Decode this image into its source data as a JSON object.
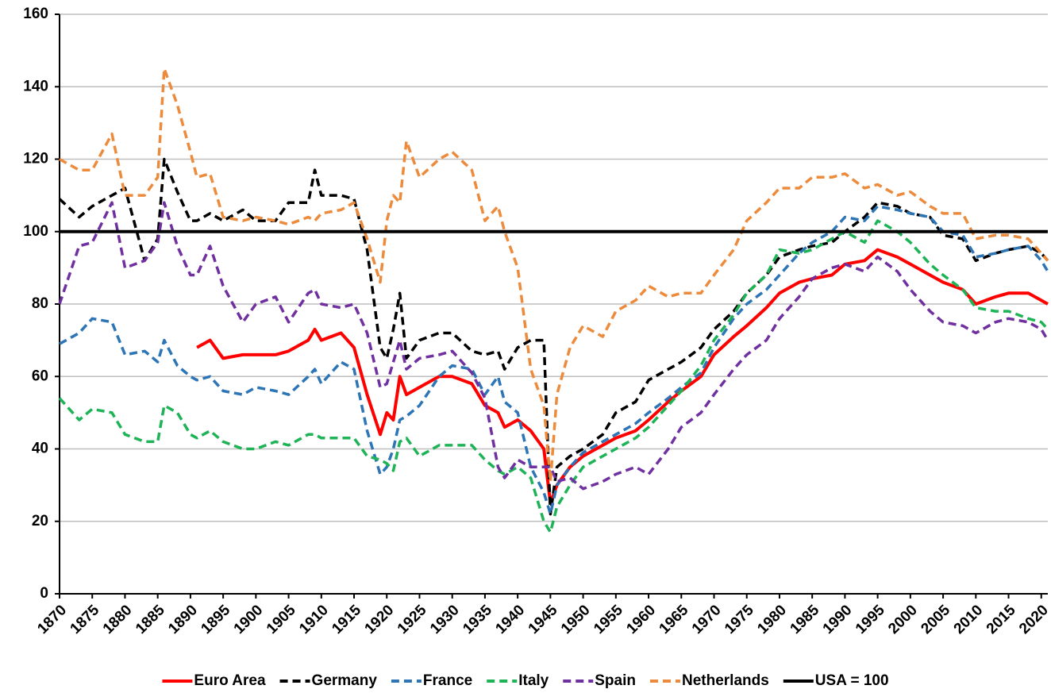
{
  "chart_data": {
    "type": "line",
    "x": [
      1870,
      1873,
      1875,
      1878,
      1880,
      1883,
      1885,
      1886,
      1888,
      1890,
      1891,
      1893,
      1895,
      1898,
      1900,
      1903,
      1905,
      1908,
      1909,
      1910,
      1913,
      1915,
      1917,
      1919,
      1920,
      1921,
      1922,
      1923,
      1925,
      1928,
      1930,
      1933,
      1935,
      1937,
      1938,
      1940,
      1942,
      1944,
      1945,
      1946,
      1948,
      1950,
      1953,
      1955,
      1958,
      1960,
      1963,
      1965,
      1968,
      1970,
      1973,
      1975,
      1978,
      1980,
      1983,
      1985,
      1988,
      1990,
      1993,
      1995,
      1998,
      2000,
      2003,
      2005,
      2008,
      2010,
      2013,
      2015,
      2018,
      2020,
      2021
    ],
    "series": [
      {
        "name": "Euro Area",
        "color": "#ff0000",
        "dash": false,
        "values": [
          null,
          null,
          null,
          null,
          null,
          null,
          null,
          null,
          null,
          null,
          68,
          70,
          65,
          66,
          66,
          66,
          67,
          70,
          73,
          70,
          72,
          68,
          55,
          44,
          50,
          48,
          60,
          55,
          57,
          60,
          60,
          58,
          52,
          50,
          46,
          48,
          45,
          40,
          25,
          30,
          35,
          38,
          41,
          43,
          45,
          48,
          53,
          56,
          60,
          66,
          71,
          74,
          79,
          83,
          86,
          87,
          88,
          91,
          92,
          95,
          93,
          91,
          88,
          86,
          84,
          80,
          82,
          83,
          83,
          81,
          80
        ]
      },
      {
        "name": "Germany",
        "color": "#000000",
        "dash": true,
        "values": [
          109,
          104,
          107,
          110,
          112,
          92,
          98,
          120,
          111,
          103,
          103,
          105,
          103,
          106,
          103,
          103,
          108,
          108,
          117,
          110,
          110,
          109,
          95,
          68,
          65,
          73,
          83,
          65,
          70,
          72,
          72,
          67,
          66,
          67,
          62,
          68,
          70,
          70,
          22,
          35,
          38,
          40,
          44,
          50,
          53,
          59,
          62,
          64,
          68,
          73,
          78,
          83,
          88,
          93,
          95,
          96,
          97,
          100,
          104,
          108,
          107,
          105,
          104,
          99,
          98,
          92,
          94,
          95,
          96,
          94,
          92
        ]
      },
      {
        "name": "France",
        "color": "#2e75b6",
        "dash": true,
        "values": [
          69,
          72,
          76,
          75,
          66,
          67,
          64,
          70,
          63,
          60,
          59,
          60,
          56,
          55,
          57,
          56,
          55,
          60,
          62,
          58,
          64,
          62,
          45,
          33,
          35,
          40,
          48,
          49,
          52,
          60,
          63,
          62,
          55,
          60,
          53,
          50,
          35,
          28,
          22,
          30,
          35,
          39,
          42,
          44,
          47,
          50,
          54,
          57,
          61,
          68,
          76,
          80,
          84,
          88,
          94,
          97,
          100,
          104,
          103,
          107,
          106,
          105,
          104,
          100,
          99,
          93,
          94,
          95,
          96,
          92,
          89
        ]
      },
      {
        "name": "Italy",
        "color": "#1eb356",
        "dash": true,
        "values": [
          54,
          48,
          51,
          50,
          44,
          42,
          42,
          52,
          50,
          44,
          43,
          45,
          42,
          40,
          40,
          42,
          41,
          44,
          44,
          43,
          43,
          43,
          38,
          37,
          36,
          34,
          42,
          43,
          38,
          41,
          41,
          41,
          37,
          34,
          33,
          35,
          32,
          20,
          17,
          24,
          30,
          35,
          38,
          40,
          43,
          46,
          52,
          56,
          63,
          70,
          77,
          83,
          88,
          95,
          94,
          95,
          98,
          100,
          97,
          103,
          100,
          97,
          91,
          88,
          84,
          79,
          78,
          78,
          76,
          75,
          73
        ]
      },
      {
        "name": "Spain",
        "color": "#7030a0",
        "dash": true,
        "values": [
          80,
          96,
          97,
          108,
          90,
          92,
          97,
          108,
          96,
          88,
          88,
          96,
          85,
          75,
          80,
          82,
          75,
          83,
          84,
          80,
          79,
          80,
          72,
          57,
          58,
          64,
          70,
          62,
          65,
          66,
          67,
          61,
          54,
          35,
          32,
          37,
          35,
          35,
          35,
          31,
          32,
          29,
          31,
          33,
          35,
          33,
          40,
          46,
          50,
          55,
          62,
          66,
          70,
          76,
          82,
          87,
          90,
          91,
          89,
          93,
          89,
          84,
          78,
          75,
          74,
          72,
          75,
          76,
          75,
          73,
          70
        ]
      },
      {
        "name": "Netherlands",
        "color": "#ed8b3d",
        "dash": true,
        "values": [
          120,
          117,
          117,
          127,
          110,
          110,
          115,
          145,
          135,
          122,
          115,
          116,
          104,
          103,
          104,
          103,
          102,
          104,
          103,
          105,
          106,
          108,
          98,
          86,
          103,
          110,
          108,
          125,
          115,
          120,
          122,
          117,
          103,
          107,
          100,
          90,
          62,
          52,
          31,
          55,
          68,
          74,
          71,
          78,
          81,
          85,
          82,
          83,
          83,
          88,
          95,
          103,
          108,
          112,
          112,
          115,
          115,
          116,
          112,
          113,
          110,
          111,
          107,
          105,
          105,
          98,
          99,
          99,
          98,
          94,
          92
        ]
      },
      {
        "name": "USA = 100",
        "color": "#000000",
        "dash": false,
        "values": [
          100,
          100,
          100,
          100,
          100,
          100,
          100,
          100,
          100,
          100,
          100,
          100,
          100,
          100,
          100,
          100,
          100,
          100,
          100,
          100,
          100,
          100,
          100,
          100,
          100,
          100,
          100,
          100,
          100,
          100,
          100,
          100,
          100,
          100,
          100,
          100,
          100,
          100,
          100,
          100,
          100,
          100,
          100,
          100,
          100,
          100,
          100,
          100,
          100,
          100,
          100,
          100,
          100,
          100,
          100,
          100,
          100,
          100,
          100,
          100,
          100,
          100,
          100,
          100,
          100,
          100,
          100,
          100,
          100,
          100,
          100
        ]
      }
    ],
    "xlim": [
      1870,
      2021
    ],
    "xticks": [
      1870,
      1875,
      1880,
      1885,
      1890,
      1895,
      1900,
      1905,
      1910,
      1915,
      1920,
      1925,
      1930,
      1935,
      1940,
      1945,
      1950,
      1955,
      1960,
      1965,
      1970,
      1975,
      1980,
      1985,
      1990,
      1995,
      2000,
      2005,
      2010,
      2015,
      2020
    ],
    "ylim": [
      0,
      160
    ],
    "yticks": [
      0,
      20,
      40,
      60,
      80,
      100,
      120,
      140,
      160
    ],
    "grid": true,
    "legend": "bottom"
  }
}
